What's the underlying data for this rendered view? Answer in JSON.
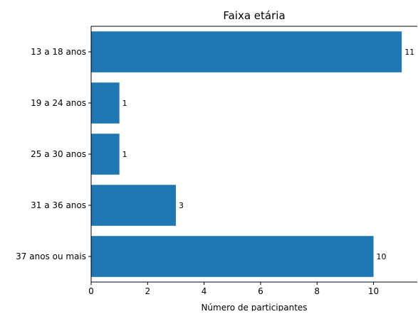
{
  "chart_data": {
    "type": "bar",
    "orientation": "horizontal",
    "title": "Faixa etária",
    "xlabel": "Número de participantes",
    "ylabel": "",
    "categories": [
      "13 a 18 anos",
      "19 a 24 anos",
      "25 a 30 anos",
      "31 a 36 anos",
      "37 anos ou mais"
    ],
    "values": [
      11,
      1,
      1,
      3,
      10
    ],
    "data_labels": [
      "11",
      "1",
      "1",
      "3",
      "10"
    ],
    "xlim": [
      0,
      11.55
    ],
    "xticks": [
      0,
      2,
      4,
      6,
      8,
      10
    ],
    "xtick_labels": [
      "0",
      "2",
      "4",
      "6",
      "8",
      "10"
    ],
    "grid": false,
    "legend": "none",
    "bar_color": "#1f77b4"
  }
}
